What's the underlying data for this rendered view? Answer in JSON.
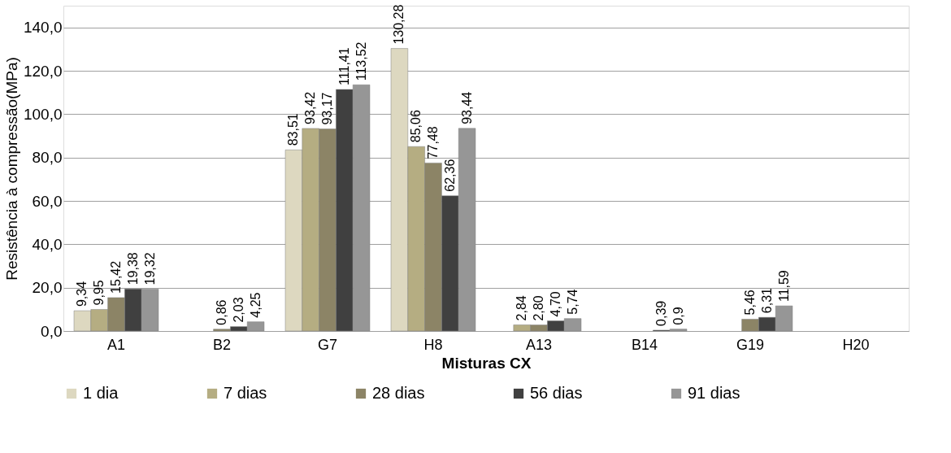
{
  "chart_data": {
    "type": "bar",
    "xlabel": "Misturas CX",
    "ylabel": "Resistência à compressão(MPa)",
    "categories": [
      "A1",
      "B2",
      "G7",
      "H8",
      "A13",
      "B14",
      "G19",
      "H20"
    ],
    "series": [
      {
        "name": "1 dia",
        "color": "#ddd8c0",
        "values": [
          9.34,
          null,
          83.51,
          130.28,
          null,
          null,
          null,
          null
        ],
        "value_labels": [
          "9,34",
          null,
          "83,51",
          "130,28",
          null,
          null,
          null,
          null
        ]
      },
      {
        "name": "7 dias",
        "color": "#b5ad82",
        "values": [
          9.95,
          null,
          93.42,
          85.06,
          2.84,
          null,
          null,
          null
        ],
        "value_labels": [
          "9,95",
          null,
          "93,42",
          "85,06",
          "2,84",
          null,
          null,
          null
        ]
      },
      {
        "name": "28 dias",
        "color": "#8c8466",
        "values": [
          15.42,
          0.86,
          93.17,
          77.48,
          2.8,
          null,
          5.46,
          null
        ],
        "value_labels": [
          "15,42",
          "0,86",
          "93,17",
          "77,48",
          "2,80",
          null,
          "5,46",
          null
        ]
      },
      {
        "name": "56 dias",
        "color": "#404040",
        "values": [
          19.38,
          2.03,
          111.41,
          62.36,
          4.7,
          0.39,
          6.31,
          null
        ],
        "value_labels": [
          "19,38",
          "2,03",
          "111,41",
          "62,36",
          "4,70",
          "0,39",
          "6,31",
          null
        ]
      },
      {
        "name": "91 dias",
        "color": "#969696",
        "values": [
          19.32,
          4.25,
          113.52,
          93.44,
          5.74,
          0.9,
          11.59,
          null
        ],
        "value_labels": [
          "19,32",
          "4,25",
          "113,52",
          "93,44",
          "5,74",
          "0,9",
          "11,59",
          null
        ]
      }
    ],
    "ylim": [
      0,
      150
    ],
    "yticks": [
      {
        "value": 0,
        "label": "0,0"
      },
      {
        "value": 20,
        "label": "20,0"
      },
      {
        "value": 40,
        "label": "40,0"
      },
      {
        "value": 60,
        "label": "60,0"
      },
      {
        "value": 80,
        "label": "80,0"
      },
      {
        "value": 100,
        "label": "100,0"
      },
      {
        "value": 120,
        "label": "120,0"
      },
      {
        "value": 140,
        "label": "140,0"
      }
    ],
    "grid": "y",
    "legend": "bottom"
  }
}
